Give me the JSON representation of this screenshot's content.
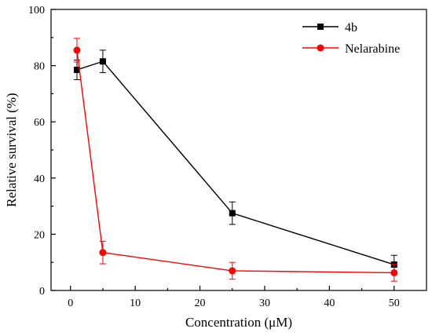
{
  "chart_data": {
    "type": "line",
    "xlabel": "Concentration (μM)",
    "ylabel": "Relative survival (%)",
    "xlim": [
      -3,
      55
    ],
    "ylim": [
      0,
      100
    ],
    "xticks": [
      0,
      10,
      20,
      30,
      40,
      50
    ],
    "yticks": [
      0,
      20,
      40,
      60,
      80,
      100
    ],
    "legend_position": "top-right",
    "grid": false,
    "series": [
      {
        "name": "4b",
        "color": "#000000",
        "marker": "square",
        "x": [
          1,
          5,
          25,
          50
        ],
        "y": [
          78.5,
          81.5,
          27.5,
          9.2
        ],
        "error": [
          3.5,
          4.0,
          4.0,
          3.3
        ]
      },
      {
        "name": "Nelarabine",
        "color": "#ff0000",
        "marker": "circle",
        "x": [
          1,
          5,
          25,
          50
        ],
        "y": [
          85.5,
          13.5,
          7.0,
          6.3
        ],
        "error": [
          4.2,
          4.0,
          3.0,
          3.0
        ]
      }
    ]
  }
}
